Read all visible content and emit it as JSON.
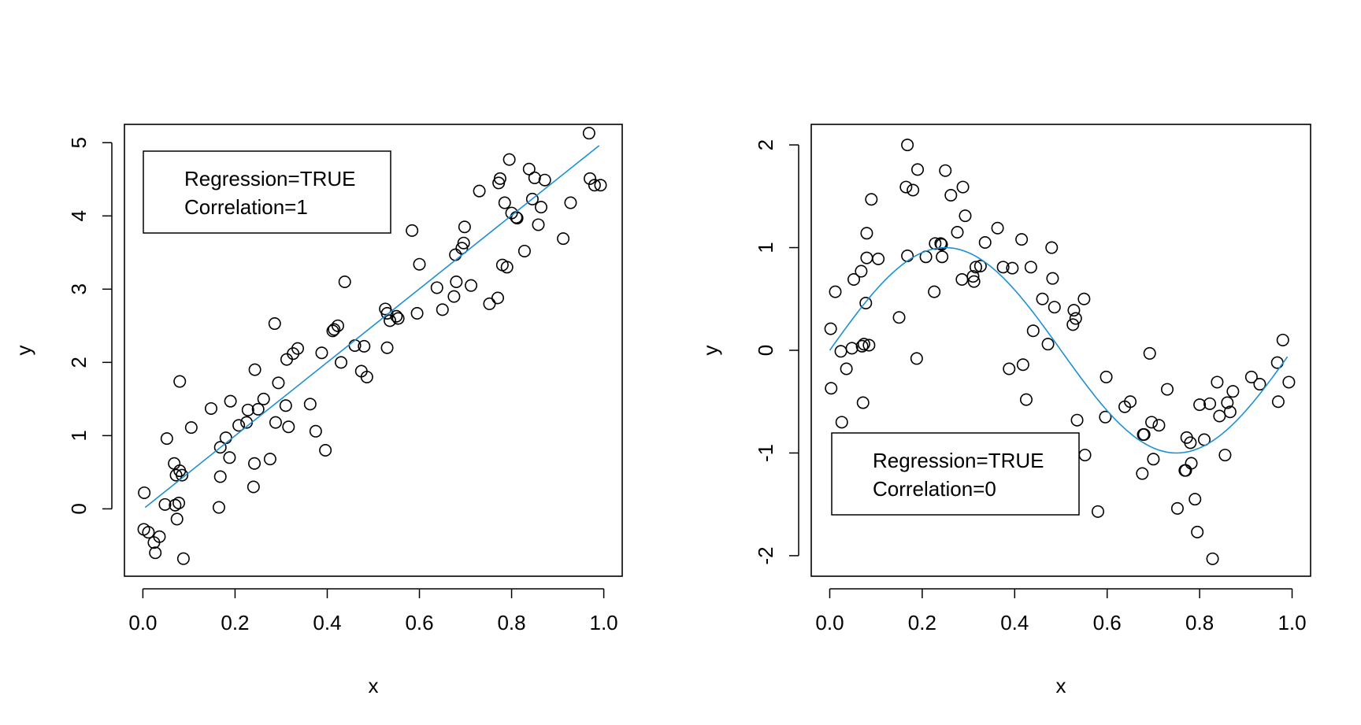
{
  "accent_color": "#1f8fd6",
  "chart_data": [
    {
      "type": "scatter",
      "xlabel": "x",
      "ylabel": "y",
      "xlim": [
        -0.04,
        1.04
      ],
      "ylim": [
        -0.92,
        5.25
      ],
      "xticks": [
        0.0,
        0.2,
        0.4,
        0.6,
        0.8,
        1.0
      ],
      "xtick_labels": [
        "0.0",
        "0.2",
        "0.4",
        "0.6",
        "0.8",
        "1.0"
      ],
      "yticks": [
        0,
        1,
        2,
        3,
        4,
        5
      ],
      "ytick_labels": [
        "0",
        "1",
        "2",
        "3",
        "4",
        "5"
      ],
      "legend": {
        "lines": [
          "Regression=TRUE",
          "Correlation=1"
        ],
        "position": "top-left"
      },
      "fit_line": {
        "color": "#1f8fd6",
        "x": [
          0.005,
          0.99
        ],
        "y": [
          0.02,
          4.96
        ]
      },
      "points": [
        [
          0.003,
          0.22
        ],
        [
          0.002,
          -0.28
        ],
        [
          0.012,
          -0.32
        ],
        [
          0.024,
          -0.46
        ],
        [
          0.027,
          -0.6
        ],
        [
          0.036,
          -0.38
        ],
        [
          0.048,
          0.06
        ],
        [
          0.052,
          0.96
        ],
        [
          0.068,
          0.62
        ],
        [
          0.07,
          0.05
        ],
        [
          0.072,
          0.46
        ],
        [
          0.074,
          -0.14
        ],
        [
          0.078,
          0.08
        ],
        [
          0.08,
          0.52
        ],
        [
          0.08,
          1.74
        ],
        [
          0.085,
          0.46
        ],
        [
          0.088,
          -0.68
        ],
        [
          0.105,
          1.11
        ],
        [
          0.148,
          1.37
        ],
        [
          0.165,
          0.02
        ],
        [
          0.168,
          0.84
        ],
        [
          0.168,
          0.44
        ],
        [
          0.18,
          0.97
        ],
        [
          0.188,
          0.7
        ],
        [
          0.19,
          1.47
        ],
        [
          0.208,
          1.14
        ],
        [
          0.225,
          1.18
        ],
        [
          0.228,
          1.35
        ],
        [
          0.24,
          0.3
        ],
        [
          0.242,
          0.62
        ],
        [
          0.243,
          1.9
        ],
        [
          0.25,
          1.36
        ],
        [
          0.262,
          1.5
        ],
        [
          0.276,
          0.68
        ],
        [
          0.286,
          2.53
        ],
        [
          0.288,
          1.18
        ],
        [
          0.294,
          1.72
        ],
        [
          0.31,
          1.41
        ],
        [
          0.312,
          2.04
        ],
        [
          0.316,
          1.12
        ],
        [
          0.326,
          2.12
        ],
        [
          0.336,
          2.19
        ],
        [
          0.363,
          1.43
        ],
        [
          0.375,
          1.06
        ],
        [
          0.388,
          2.13
        ],
        [
          0.396,
          0.8
        ],
        [
          0.412,
          2.43
        ],
        [
          0.415,
          2.45
        ],
        [
          0.423,
          2.5
        ],
        [
          0.43,
          2.0
        ],
        [
          0.438,
          3.1
        ],
        [
          0.46,
          2.23
        ],
        [
          0.474,
          1.88
        ],
        [
          0.48,
          2.22
        ],
        [
          0.486,
          1.8
        ],
        [
          0.526,
          2.73
        ],
        [
          0.53,
          2.67
        ],
        [
          0.53,
          2.2
        ],
        [
          0.536,
          2.57
        ],
        [
          0.55,
          2.63
        ],
        [
          0.554,
          2.6
        ],
        [
          0.584,
          3.8
        ],
        [
          0.595,
          2.67
        ],
        [
          0.6,
          3.34
        ],
        [
          0.638,
          3.02
        ],
        [
          0.65,
          2.72
        ],
        [
          0.675,
          2.9
        ],
        [
          0.678,
          3.47
        ],
        [
          0.68,
          3.1
        ],
        [
          0.692,
          3.56
        ],
        [
          0.696,
          3.63
        ],
        [
          0.698,
          3.85
        ],
        [
          0.712,
          3.05
        ],
        [
          0.73,
          4.34
        ],
        [
          0.752,
          2.8
        ],
        [
          0.77,
          2.88
        ],
        [
          0.772,
          4.45
        ],
        [
          0.775,
          4.51
        ],
        [
          0.78,
          3.33
        ],
        [
          0.785,
          4.18
        ],
        [
          0.79,
          3.3
        ],
        [
          0.795,
          4.77
        ],
        [
          0.8,
          4.04
        ],
        [
          0.81,
          3.98
        ],
        [
          0.812,
          3.97
        ],
        [
          0.828,
          3.52
        ],
        [
          0.838,
          4.64
        ],
        [
          0.845,
          4.23
        ],
        [
          0.85,
          4.52
        ],
        [
          0.858,
          3.88
        ],
        [
          0.864,
          4.12
        ],
        [
          0.872,
          4.49
        ],
        [
          0.912,
          3.69
        ],
        [
          0.928,
          4.18
        ],
        [
          0.968,
          5.13
        ],
        [
          0.97,
          4.51
        ],
        [
          0.98,
          4.42
        ],
        [
          0.993,
          4.42
        ]
      ]
    },
    {
      "type": "scatter",
      "xlabel": "x",
      "ylabel": "y",
      "xlim": [
        -0.04,
        1.04
      ],
      "ylim": [
        -2.2,
        2.2
      ],
      "xticks": [
        0.0,
        0.2,
        0.4,
        0.6,
        0.8,
        1.0
      ],
      "xtick_labels": [
        "0.0",
        "0.2",
        "0.4",
        "0.6",
        "0.8",
        "1.0"
      ],
      "yticks": [
        -2,
        -1,
        0,
        1,
        2
      ],
      "ytick_labels": [
        "-2",
        "-1",
        "0",
        "1",
        "2"
      ],
      "legend": {
        "lines": [
          "Regression=TRUE",
          "Correlation=0"
        ],
        "position": "bottom-left"
      },
      "fit_line": {
        "color": "#1f8fd6",
        "function": "sin(2*pi*x)",
        "x_range": [
          0.0,
          0.99
        ]
      },
      "points": [
        [
          0.002,
          0.21
        ],
        [
          0.003,
          -0.37
        ],
        [
          0.012,
          0.57
        ],
        [
          0.024,
          -0.01
        ],
        [
          0.026,
          -0.7
        ],
        [
          0.036,
          -0.18
        ],
        [
          0.048,
          0.02
        ],
        [
          0.052,
          0.69
        ],
        [
          0.068,
          0.77
        ],
        [
          0.07,
          0.04
        ],
        [
          0.072,
          -0.51
        ],
        [
          0.074,
          0.06
        ],
        [
          0.078,
          0.46
        ],
        [
          0.08,
          0.9
        ],
        [
          0.08,
          1.14
        ],
        [
          0.085,
          0.05
        ],
        [
          0.09,
          1.47
        ],
        [
          0.105,
          0.89
        ],
        [
          0.15,
          0.32
        ],
        [
          0.165,
          1.59
        ],
        [
          0.168,
          2.0
        ],
        [
          0.168,
          0.92
        ],
        [
          0.18,
          1.56
        ],
        [
          0.188,
          -0.08
        ],
        [
          0.19,
          1.76
        ],
        [
          0.208,
          0.91
        ],
        [
          0.226,
          0.57
        ],
        [
          0.228,
          1.04
        ],
        [
          0.24,
          1.04
        ],
        [
          0.242,
          1.03
        ],
        [
          0.243,
          0.91
        ],
        [
          0.25,
          1.75
        ],
        [
          0.262,
          1.51
        ],
        [
          0.276,
          1.15
        ],
        [
          0.286,
          0.69
        ],
        [
          0.288,
          1.59
        ],
        [
          0.293,
          1.31
        ],
        [
          0.31,
          0.72
        ],
        [
          0.312,
          0.67
        ],
        [
          0.316,
          0.81
        ],
        [
          0.326,
          0.82
        ],
        [
          0.336,
          1.05
        ],
        [
          0.363,
          1.19
        ],
        [
          0.375,
          0.81
        ],
        [
          0.388,
          -0.18
        ],
        [
          0.395,
          0.8
        ],
        [
          0.415,
          1.08
        ],
        [
          0.418,
          -0.14
        ],
        [
          0.425,
          -0.48
        ],
        [
          0.435,
          0.81
        ],
        [
          0.44,
          0.19
        ],
        [
          0.46,
          0.5
        ],
        [
          0.472,
          0.06
        ],
        [
          0.48,
          1.0
        ],
        [
          0.482,
          0.7
        ],
        [
          0.486,
          0.42
        ],
        [
          0.526,
          0.25
        ],
        [
          0.528,
          0.39
        ],
        [
          0.532,
          0.31
        ],
        [
          0.535,
          -0.68
        ],
        [
          0.55,
          0.5
        ],
        [
          0.552,
          -1.02
        ],
        [
          0.58,
          -1.57
        ],
        [
          0.598,
          -0.26
        ],
        [
          0.596,
          -0.65
        ],
        [
          0.638,
          -0.55
        ],
        [
          0.65,
          -0.5
        ],
        [
          0.676,
          -1.2
        ],
        [
          0.678,
          -0.82
        ],
        [
          0.68,
          -0.82
        ],
        [
          0.692,
          -0.03
        ],
        [
          0.696,
          -0.7
        ],
        [
          0.7,
          -1.06
        ],
        [
          0.712,
          -0.73
        ],
        [
          0.73,
          -0.38
        ],
        [
          0.752,
          -1.54
        ],
        [
          0.768,
          -1.17
        ],
        [
          0.77,
          -1.17
        ],
        [
          0.772,
          -0.85
        ],
        [
          0.78,
          -0.9
        ],
        [
          0.782,
          -1.1
        ],
        [
          0.79,
          -1.45
        ],
        [
          0.795,
          -1.77
        ],
        [
          0.8,
          -0.53
        ],
        [
          0.81,
          -0.87
        ],
        [
          0.822,
          -0.52
        ],
        [
          0.828,
          -2.03
        ],
        [
          0.838,
          -0.31
        ],
        [
          0.843,
          -0.64
        ],
        [
          0.855,
          -1.02
        ],
        [
          0.86,
          -0.51
        ],
        [
          0.866,
          -0.6
        ],
        [
          0.872,
          -0.4
        ],
        [
          0.912,
          -0.26
        ],
        [
          0.93,
          -0.33
        ],
        [
          0.968,
          -0.12
        ],
        [
          0.97,
          -0.5
        ],
        [
          0.98,
          0.1
        ],
        [
          0.993,
          -0.31
        ]
      ]
    }
  ]
}
